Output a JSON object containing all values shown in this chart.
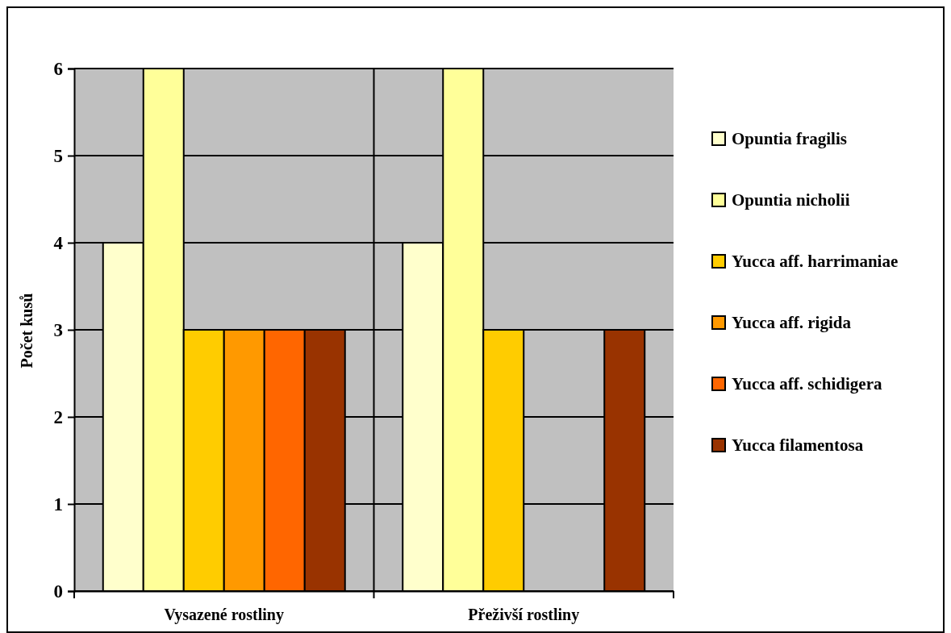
{
  "chart_data": {
    "type": "bar",
    "ylabel": "Počet kusů",
    "categories": [
      "Vysazené rostliny",
      "Přeživší rostliny"
    ],
    "series": [
      {
        "name": "Opuntia fragilis",
        "color": "#ffffcc",
        "values": [
          4,
          4
        ]
      },
      {
        "name": "Opuntia nicholii",
        "color": "#ffff99",
        "values": [
          6,
          6
        ]
      },
      {
        "name": "Yucca aff. harrimaniae",
        "color": "#ffcc00",
        "values": [
          3,
          3
        ]
      },
      {
        "name": "Yucca aff. rigida",
        "color": "#ff9900",
        "values": [
          3,
          0
        ]
      },
      {
        "name": "Yucca aff. schidigera",
        "color": "#ff6600",
        "values": [
          3,
          0
        ]
      },
      {
        "name": "Yucca filamentosa",
        "color": "#993300",
        "values": [
          3,
          3
        ]
      }
    ],
    "ylim": [
      0,
      6
    ],
    "yticks": [
      0,
      1,
      2,
      3,
      4,
      5,
      6
    ],
    "grid": true,
    "legend": "right"
  }
}
